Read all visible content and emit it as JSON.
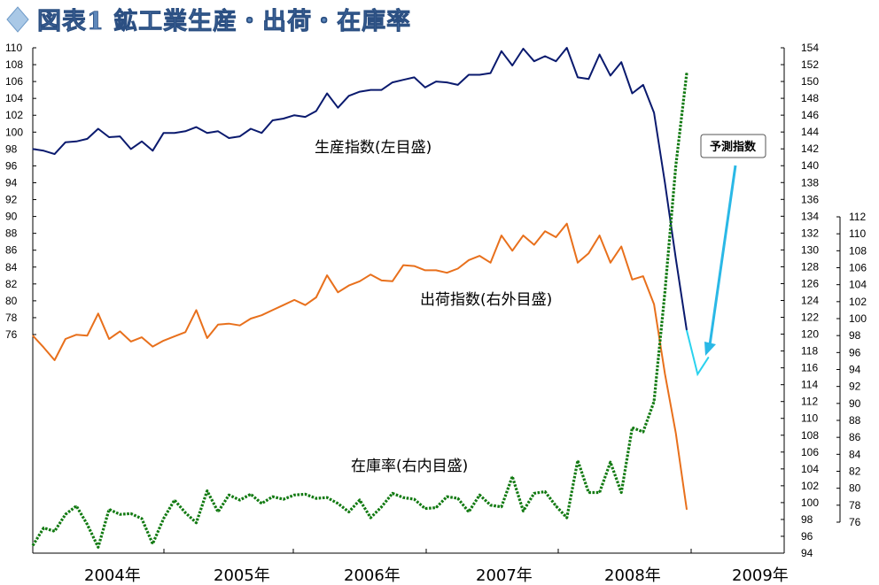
{
  "title": "図表1 鉱工業生産・出荷・在庫率",
  "chart_data": {
    "type": "line",
    "title": "図表1 鉱工業生産・出荷・在庫率",
    "x_labels": [
      "2004年",
      "2005年",
      "2006年",
      "2007年",
      "2008年",
      "2009年"
    ],
    "axes": {
      "left": {
        "ticks": [
          76,
          78,
          80,
          82,
          84,
          86,
          88,
          90,
          92,
          94,
          96,
          98,
          100,
          102,
          104,
          106,
          108,
          110
        ],
        "range": [
          76,
          110
        ]
      },
      "right_inner": {
        "ticks": [
          94,
          96,
          98,
          100,
          102,
          104,
          106,
          108,
          110,
          112,
          114,
          116,
          118,
          120,
          122,
          124,
          126,
          128,
          130,
          132,
          134,
          136,
          138,
          140,
          142,
          144,
          146,
          148,
          150,
          152,
          154
        ],
        "range": [
          94,
          154
        ]
      },
      "right_outer": {
        "ticks": [
          76,
          78,
          80,
          82,
          84,
          86,
          88,
          90,
          92,
          94,
          96,
          98,
          100,
          102,
          104,
          106,
          108,
          110,
          112
        ],
        "range": [
          76,
          112
        ]
      }
    },
    "series": [
      {
        "name": "生産指数(左目盛)",
        "axis": "left",
        "color": "#0a1a6e",
        "style": "solid",
        "values": [
          98.0,
          97.8,
          97.4,
          98.8,
          98.9,
          99.2,
          100.4,
          99.4,
          99.5,
          98.0,
          98.9,
          97.8,
          99.9,
          99.9,
          100.1,
          100.6,
          99.9,
          100.1,
          99.3,
          99.5,
          100.4,
          99.9,
          101.4,
          101.6,
          102.0,
          101.8,
          102.5,
          104.6,
          102.9,
          104.3,
          104.8,
          105.0,
          105.0,
          105.9,
          106.2,
          106.5,
          105.3,
          106.0,
          105.9,
          105.6,
          106.8,
          106.8,
          107.0,
          109.6,
          107.9,
          109.9,
          108.4,
          109.0,
          108.4,
          110.0,
          106.5,
          106.3,
          109.2,
          106.7,
          108.3,
          104.6,
          105.6,
          102.3,
          94.0,
          85.0,
          76.5
        ],
        "forecast": {
          "name": "予測指数",
          "color": "#2ad2ee",
          "values": [
            76.5,
            71.3,
            73.3
          ]
        }
      },
      {
        "name": "出荷指数(右外目盛)",
        "axis": "right_outer",
        "color": "#e8701c",
        "style": "solid",
        "values": [
          98.0,
          96.6,
          95.1,
          97.6,
          98.1,
          98.0,
          100.6,
          97.6,
          98.5,
          97.3,
          97.8,
          96.7,
          97.4,
          97.9,
          98.4,
          101.0,
          97.7,
          99.3,
          99.4,
          99.2,
          100.0,
          100.4,
          101.0,
          101.6,
          102.2,
          101.6,
          102.5,
          105.1,
          103.1,
          103.9,
          104.4,
          105.2,
          104.5,
          104.4,
          106.3,
          106.2,
          105.7,
          105.7,
          105.4,
          105.9,
          106.9,
          107.4,
          106.6,
          109.8,
          108.0,
          109.8,
          108.7,
          110.3,
          109.6,
          111.2,
          106.6,
          107.7,
          109.8,
          106.6,
          108.5,
          104.6,
          105.0,
          101.7,
          93.5,
          86.5,
          77.5
        ]
      },
      {
        "name": "在庫率(右内目盛)",
        "axis": "right_inner",
        "color": "#127a12",
        "style": "dotted",
        "values": [
          94.9,
          97.0,
          96.6,
          98.6,
          99.6,
          97.4,
          94.7,
          99.2,
          98.6,
          98.7,
          98.1,
          95.1,
          98.1,
          100.3,
          98.8,
          97.6,
          101.4,
          98.9,
          100.9,
          100.3,
          101.0,
          99.9,
          100.7,
          100.4,
          100.9,
          101.0,
          100.5,
          100.6,
          99.9,
          98.9,
          100.3,
          98.2,
          99.5,
          101.1,
          100.6,
          100.4,
          99.3,
          99.4,
          100.7,
          100.5,
          98.9,
          100.9,
          99.7,
          99.5,
          103.1,
          99.0,
          101.1,
          101.3,
          99.6,
          98.2,
          105.0,
          101.2,
          101.2,
          104.8,
          101.2,
          108.9,
          108.4,
          112.0,
          125.0,
          140.0,
          151.0
        ]
      }
    ],
    "annotations": [
      {
        "text": "生産指数(左目盛)"
      },
      {
        "text": "出荷指数(右外目盛)"
      },
      {
        "text": "在庫率(右内目盛)"
      },
      {
        "text": "予測指数"
      }
    ],
    "grid": false,
    "legend": "none"
  }
}
